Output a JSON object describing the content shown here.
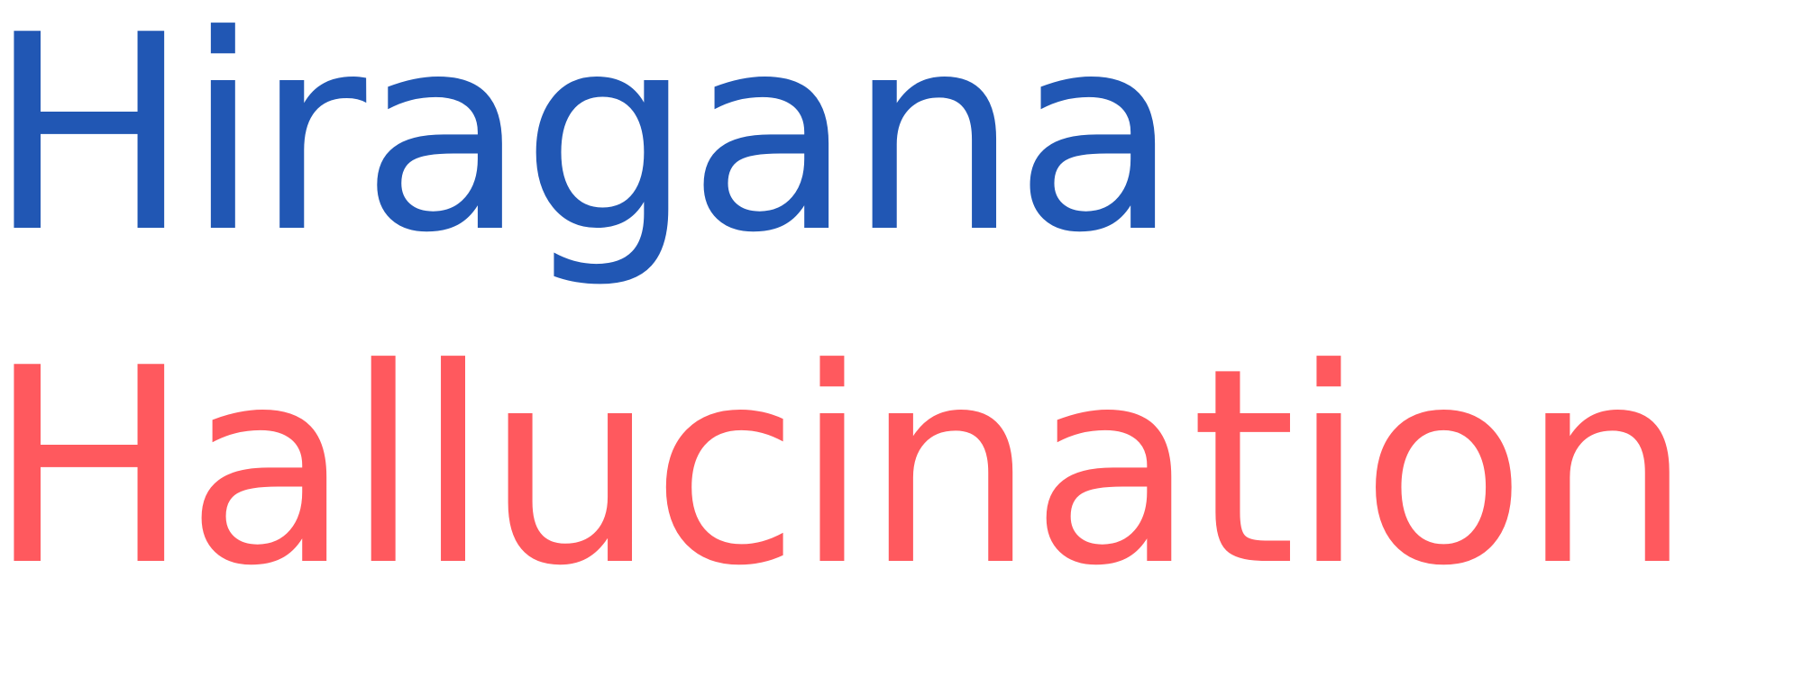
{
  "logo": {
    "line_1": {
      "text": "Hiragana",
      "color": "#2157b4"
    },
    "line_2": {
      "text": "Hallucination",
      "color": "#ff595e"
    }
  }
}
